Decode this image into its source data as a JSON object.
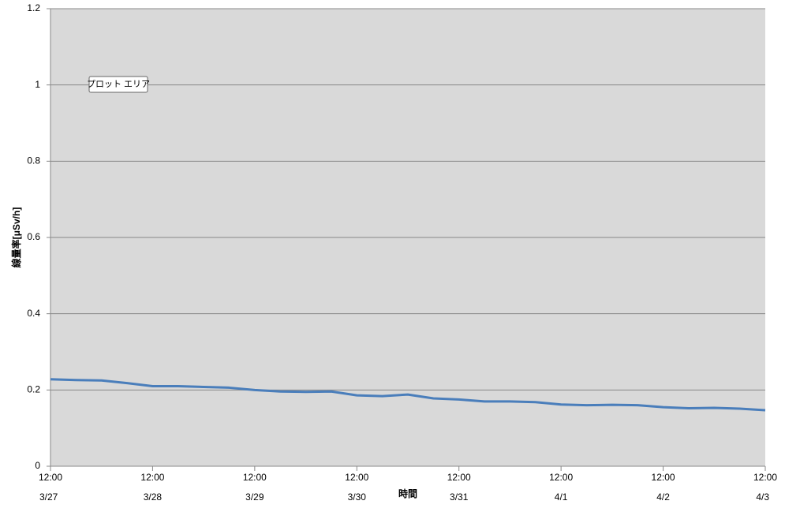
{
  "chart_data": {
    "type": "line",
    "y_label": "線量率[μSv/h]",
    "x_label": "時間",
    "tooltip": "プロット エリア",
    "categories": [
      {
        "time": "12:00",
        "date": "3/27"
      },
      null,
      null,
      null,
      {
        "time": "12:00",
        "date": "3/28"
      },
      null,
      null,
      null,
      {
        "time": "12:00",
        "date": "3/29"
      },
      null,
      null,
      null,
      {
        "time": "12:00",
        "date": "3/30"
      },
      null,
      null,
      null,
      {
        "time": "12:00",
        "date": "3/31"
      },
      null,
      null,
      null,
      {
        "time": "12:00",
        "date": "4/1"
      },
      null,
      null,
      null,
      {
        "time": "12:00",
        "date": "4/2"
      },
      null,
      null,
      null,
      {
        "time": "12:00",
        "date": "4/3"
      }
    ],
    "series": [
      {
        "color": "#4a7ebb",
        "values": [
          0.228,
          0.226,
          0.225,
          0.218,
          0.21,
          0.21,
          0.208,
          0.206,
          0.2,
          0.196,
          0.195,
          0.196,
          0.186,
          0.184,
          0.188,
          0.178,
          0.175,
          0.17,
          0.17,
          0.168,
          0.162,
          0.16,
          0.161,
          0.16,
          0.155,
          0.152,
          0.153,
          0.151,
          0.147
        ]
      }
    ],
    "ylim": [
      0,
      1.2
    ],
    "yticks": [
      0,
      0.2,
      0.4,
      0.6,
      0.8,
      1,
      1.2
    ],
    "grid": true
  }
}
